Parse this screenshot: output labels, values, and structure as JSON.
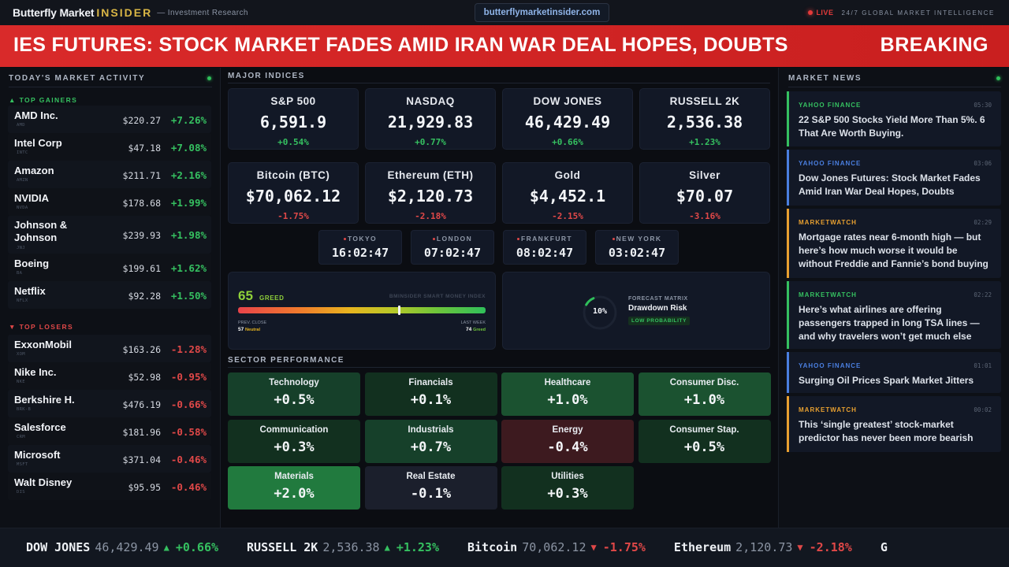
{
  "header": {
    "brand_main": "Butterfly Market",
    "brand_accent": "INSIDER",
    "brand_sub": "— Investment Research",
    "url": "butterflymarketinsider.com",
    "live_label": "LIVE",
    "tagline": "24/7 GLOBAL MARKET INTELLIGENCE"
  },
  "breaking": {
    "headline": "IES FUTURES: STOCK MARKET FADES AMID IRAN WAR DEAL HOPES, DOUBTS",
    "tag": "BREAKING"
  },
  "market_activity": {
    "title": "TODAY'S MARKET ACTIVITY",
    "gainers_label": "▲ TOP GAINERS",
    "losers_label": "▼ TOP LOSERS",
    "gainers": [
      {
        "name": "AMD Inc.",
        "ticker": "AMD",
        "price": "$220.27",
        "change": "+7.26%"
      },
      {
        "name": "Intel Corp",
        "ticker": "INTC",
        "price": "$47.18",
        "change": "+7.08%"
      },
      {
        "name": "Amazon",
        "ticker": "AMZN",
        "price": "$211.71",
        "change": "+2.16%"
      },
      {
        "name": "NVIDIA",
        "ticker": "NVDA",
        "price": "$178.68",
        "change": "+1.99%"
      },
      {
        "name": "Johnson & Johnson",
        "ticker": "JNJ",
        "price": "$239.93",
        "change": "+1.98%"
      },
      {
        "name": "Boeing",
        "ticker": "BA",
        "price": "$199.61",
        "change": "+1.62%"
      },
      {
        "name": "Netflix",
        "ticker": "NFLX",
        "price": "$92.28",
        "change": "+1.50%"
      }
    ],
    "losers": [
      {
        "name": "ExxonMobil",
        "ticker": "XOM",
        "price": "$163.26",
        "change": "-1.28%"
      },
      {
        "name": "Nike Inc.",
        "ticker": "NKE",
        "price": "$52.98",
        "change": "-0.95%"
      },
      {
        "name": "Berkshire H.",
        "ticker": "BRK-B",
        "price": "$476.19",
        "change": "-0.66%"
      },
      {
        "name": "Salesforce",
        "ticker": "CRM",
        "price": "$181.96",
        "change": "-0.58%"
      },
      {
        "name": "Microsoft",
        "ticker": "MSFT",
        "price": "$371.04",
        "change": "-0.46%"
      },
      {
        "name": "Walt Disney",
        "ticker": "DIS",
        "price": "$95.95",
        "change": "-0.46%"
      }
    ]
  },
  "indices": {
    "title": "MAJOR INDICES",
    "items": [
      {
        "name": "S&P 500",
        "value": "6,591.9",
        "change": "+0.54%",
        "dir": "up"
      },
      {
        "name": "NASDAQ",
        "value": "21,929.83",
        "change": "+0.77%",
        "dir": "up"
      },
      {
        "name": "DOW JONES",
        "value": "46,429.49",
        "change": "+0.66%",
        "dir": "up"
      },
      {
        "name": "RUSSELL 2K",
        "value": "2,536.38",
        "change": "+1.23%",
        "dir": "up"
      },
      {
        "name": "Bitcoin (BTC)",
        "value": "$70,062.12",
        "change": "-1.75%",
        "dir": "down"
      },
      {
        "name": "Ethereum (ETH)",
        "value": "$2,120.73",
        "change": "-2.18%",
        "dir": "down"
      },
      {
        "name": "Gold",
        "value": "$4,452.1",
        "change": "-2.15%",
        "dir": "down"
      },
      {
        "name": "Silver",
        "value": "$70.07",
        "change": "-3.16%",
        "dir": "down"
      }
    ]
  },
  "clocks": [
    {
      "city": "TOKYO",
      "time": "16:02:47"
    },
    {
      "city": "LONDON",
      "time": "07:02:47"
    },
    {
      "city": "FRANKFURT",
      "time": "08:02:47"
    },
    {
      "city": "NEW YORK",
      "time": "03:02:47"
    }
  ],
  "sentiment": {
    "score": "65",
    "label": "GREED",
    "index_name": "BMINSIDER SMART MONEY INDEX",
    "gauge_value": 65,
    "prev_label": "PREV. CLOSE",
    "prev_value": "57",
    "prev_state": "Neutral",
    "week_label": "LAST WEEK",
    "week_value": "74",
    "week_state": "Greed"
  },
  "forecast": {
    "percent_label": "10%",
    "percent_value": 10,
    "kicker": "FORECAST MATRIX",
    "title": "Drawdown Risk",
    "badge": "LOW PROBABILITY"
  },
  "sectors": {
    "title": "SECTOR PERFORMANCE",
    "items": [
      {
        "name": "Technology",
        "value": "+0.5%",
        "tone": "g2"
      },
      {
        "name": "Financials",
        "value": "+0.1%",
        "tone": "g1"
      },
      {
        "name": "Healthcare",
        "value": "+1.0%",
        "tone": "g3"
      },
      {
        "name": "Consumer Disc.",
        "value": "+1.0%",
        "tone": "g3"
      },
      {
        "name": "Communication",
        "value": "+0.3%",
        "tone": "g1"
      },
      {
        "name": "Industrials",
        "value": "+0.7%",
        "tone": "g2"
      },
      {
        "name": "Energy",
        "value": "-0.4%",
        "tone": "r1"
      },
      {
        "name": "Consumer Stap.",
        "value": "+0.5%",
        "tone": "g1"
      },
      {
        "name": "Materials",
        "value": "+2.0%",
        "tone": "g4"
      },
      {
        "name": "Real Estate",
        "value": "-0.1%",
        "tone": "n"
      },
      {
        "name": "Utilities",
        "value": "+0.3%",
        "tone": "g1"
      }
    ]
  },
  "news": {
    "title": "MARKET NEWS",
    "items": [
      {
        "source": "YAHOO FINANCE",
        "time": "05:30",
        "headline": "22 S&P 500 Stocks Yield More Than 5%. 6 That Are Worth Buying.",
        "accent": "#35c060"
      },
      {
        "source": "YAHOO FINANCE",
        "time": "03:06",
        "headline": "Dow Jones Futures: Stock Market Fades Amid Iran War Deal Hopes, Doubts",
        "accent": "#4a7fe0"
      },
      {
        "source": "MARKETWATCH",
        "time": "02:29",
        "headline": "Mortgage rates near 6-month high — but here’s how much worse it would be without Freddie and Fannie’s bond buying",
        "accent": "#e8a030"
      },
      {
        "source": "MARKETWATCH",
        "time": "02:22",
        "headline": "Here’s what airlines are offering passengers trapped in long TSA lines — and why travelers won’t get much else",
        "accent": "#35c060"
      },
      {
        "source": "YAHOO FINANCE",
        "time": "01:01",
        "headline": "Surging Oil Prices Spark Market Jitters",
        "accent": "#4a7fe0"
      },
      {
        "source": "MARKETWATCH",
        "time": "00:02",
        "headline": "This ‘single greatest’ stock-market predictor has never been more bearish",
        "accent": "#e8a030"
      }
    ]
  },
  "ticker": {
    "lead_fragment": "%",
    "items": [
      {
        "name": "DOW JONES",
        "price": "46,429.49",
        "arrow": "▲",
        "change": "+0.66%",
        "dir": "up"
      },
      {
        "name": "RUSSELL 2K",
        "price": "2,536.38",
        "arrow": "▲",
        "change": "+1.23%",
        "dir": "up"
      },
      {
        "name": "Bitcoin",
        "price": "70,062.12",
        "arrow": "▼",
        "change": "-1.75%",
        "dir": "down"
      },
      {
        "name": "Ethereum",
        "price": "2,120.73",
        "arrow": "▼",
        "change": "-2.18%",
        "dir": "down"
      },
      {
        "name": "G",
        "price": "",
        "arrow": "",
        "change": "",
        "dir": "up"
      }
    ]
  }
}
